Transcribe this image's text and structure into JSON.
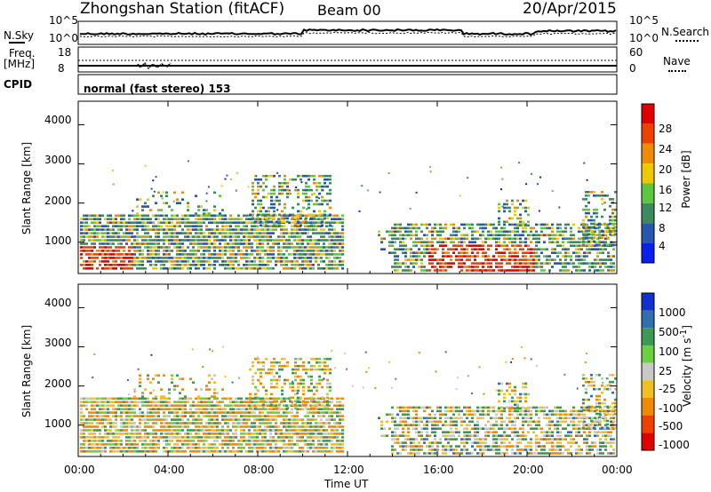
{
  "header": {
    "station": "Zhongshan Station (fitACF)",
    "beam": "Beam 00",
    "date": "20/Apr/2015"
  },
  "strip_labels": {
    "nsky": "N.Sky",
    "nsky_ticks": [
      "10^5",
      "10^0"
    ],
    "nsearch": "N.Search",
    "nsearch_ticks": [
      "10^5",
      "10^0"
    ],
    "freq": "Freq.",
    "freq_unit": "[MHz]",
    "freq_ticks": [
      "18",
      "8"
    ],
    "nave": "Nave",
    "nave_ticks": [
      "60",
      "0"
    ],
    "cpid": "CPID",
    "cpid_text": "normal (fast stereo) 153"
  },
  "colors": {
    "power": [
      "#0a1ef0",
      "#2656b0",
      "#3c8a60",
      "#5cc840",
      "#f0c800",
      "#f08c00",
      "#f04000",
      "#e00000"
    ],
    "velocity": [
      "#1030d0",
      "#2f6fb0",
      "#3e9a50",
      "#6cd040",
      "#c8c8c8",
      "#f0c020",
      "#f08a00",
      "#f04000",
      "#e00000"
    ],
    "ground_scatter": "#c8c8c8"
  },
  "chart_data": [
    {
      "type": "heatmap",
      "name": "power",
      "xlabel": "",
      "ylabel": "Slant Range [km]",
      "colorbar_label": "Power [dB]",
      "colorbar_ticks": [
        "28",
        "24",
        "20",
        "16",
        "12",
        "8",
        "4"
      ],
      "ylim": [
        200,
        4600
      ],
      "y_ticks": [
        "4000",
        "3000",
        "2000",
        "1000"
      ],
      "x_ticks": [
        "00:00",
        "04:00",
        "08:00",
        "12:00",
        "16:00",
        "20:00",
        "00:00"
      ]
    },
    {
      "type": "heatmap",
      "name": "velocity",
      "xlabel": "Time UT",
      "ylabel": "Slant Range [km]",
      "colorbar_label": "Velocity [m s^-1]",
      "colorbar_ticks": [
        "1000",
        "500",
        "100",
        "25",
        "-25",
        "-100",
        "-500",
        "-1000"
      ],
      "ylim": [
        200,
        4600
      ],
      "y_ticks": [
        "4000",
        "3000",
        "2000",
        "1000"
      ],
      "x_ticks": [
        "00:00",
        "04:00",
        "08:00",
        "12:00",
        "16:00",
        "20:00",
        "00:00"
      ]
    }
  ]
}
